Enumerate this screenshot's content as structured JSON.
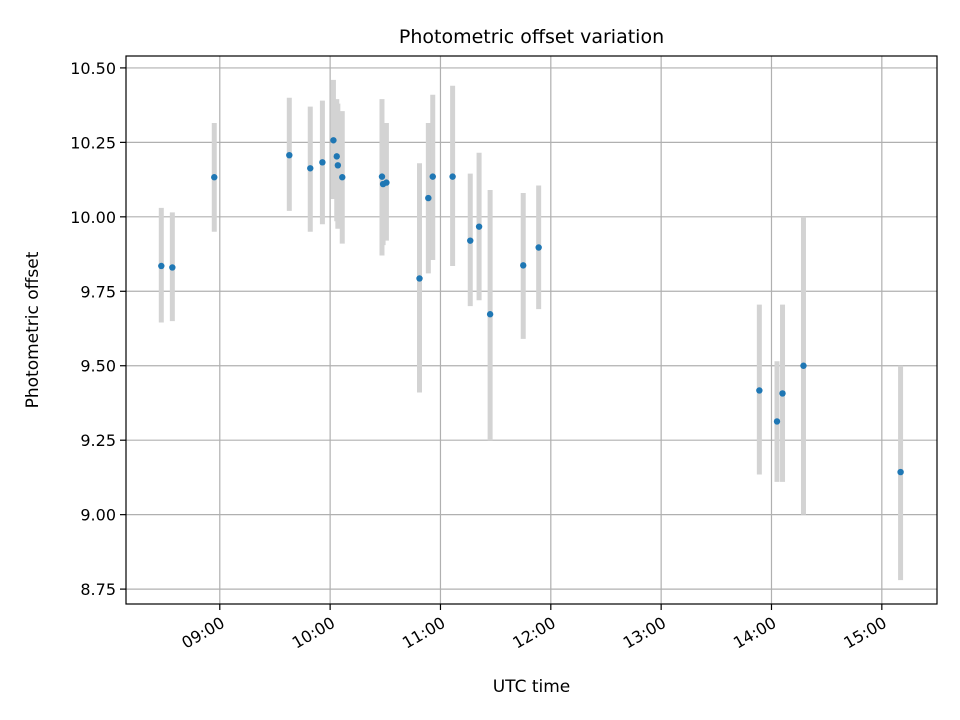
{
  "chart_data": {
    "type": "scatter",
    "title": "Photometric offset variation",
    "xlabel": "UTC time",
    "ylabel": "Photometric offset",
    "x_unit": "hours UTC",
    "xlim": [
      8.15,
      15.5
    ],
    "ylim": [
      8.7,
      10.54
    ],
    "grid": true,
    "x_ticks": [
      {
        "value": 9,
        "label": "09:00"
      },
      {
        "value": 10,
        "label": "10:00"
      },
      {
        "value": 11,
        "label": "11:00"
      },
      {
        "value": 12,
        "label": "12:00"
      },
      {
        "value": 13,
        "label": "13:00"
      },
      {
        "value": 14,
        "label": "14:00"
      },
      {
        "value": 15,
        "label": "15:00"
      }
    ],
    "y_ticks": [
      {
        "value": 8.75,
        "label": "8.75"
      },
      {
        "value": 9.0,
        "label": "9.00"
      },
      {
        "value": 9.25,
        "label": "9.25"
      },
      {
        "value": 9.5,
        "label": "9.50"
      },
      {
        "value": 9.75,
        "label": "9.75"
      },
      {
        "value": 10.0,
        "label": "10.00"
      },
      {
        "value": 10.25,
        "label": "10.25"
      },
      {
        "value": 10.5,
        "label": "10.50"
      }
    ],
    "marker_color": "#1f77b4",
    "errorbar_color": "#d3d3d3",
    "points": [
      {
        "x": 8.47,
        "y": 9.835,
        "lo": 9.645,
        "hi": 10.03
      },
      {
        "x": 8.57,
        "y": 9.83,
        "lo": 9.65,
        "hi": 10.015
      },
      {
        "x": 8.95,
        "y": 10.133,
        "lo": 9.95,
        "hi": 10.315
      },
      {
        "x": 9.63,
        "y": 10.207,
        "lo": 10.02,
        "hi": 10.4
      },
      {
        "x": 9.82,
        "y": 10.163,
        "lo": 9.95,
        "hi": 10.37
      },
      {
        "x": 9.93,
        "y": 10.183,
        "lo": 9.975,
        "hi": 10.39
      },
      {
        "x": 10.03,
        "y": 10.257,
        "lo": 10.06,
        "hi": 10.46
      },
      {
        "x": 10.06,
        "y": 10.203,
        "lo": 9.985,
        "hi": 10.395
      },
      {
        "x": 10.07,
        "y": 10.173,
        "lo": 9.96,
        "hi": 10.38
      },
      {
        "x": 10.11,
        "y": 10.133,
        "lo": 9.91,
        "hi": 10.355
      },
      {
        "x": 10.47,
        "y": 10.135,
        "lo": 9.87,
        "hi": 10.395
      },
      {
        "x": 10.48,
        "y": 10.11,
        "lo": 9.905,
        "hi": 10.31
      },
      {
        "x": 10.51,
        "y": 10.115,
        "lo": 9.92,
        "hi": 10.315
      },
      {
        "x": 10.81,
        "y": 9.793,
        "lo": 9.41,
        "hi": 10.18
      },
      {
        "x": 10.89,
        "y": 10.063,
        "lo": 9.81,
        "hi": 10.315
      },
      {
        "x": 10.93,
        "y": 10.135,
        "lo": 9.855,
        "hi": 10.41
      },
      {
        "x": 11.11,
        "y": 10.135,
        "lo": 9.835,
        "hi": 10.44
      },
      {
        "x": 11.27,
        "y": 9.92,
        "lo": 9.7,
        "hi": 10.145
      },
      {
        "x": 11.35,
        "y": 9.967,
        "lo": 9.72,
        "hi": 10.215
      },
      {
        "x": 11.45,
        "y": 9.673,
        "lo": 9.25,
        "hi": 10.09
      },
      {
        "x": 11.75,
        "y": 9.837,
        "lo": 9.59,
        "hi": 10.08
      },
      {
        "x": 11.89,
        "y": 9.897,
        "lo": 9.69,
        "hi": 10.105
      },
      {
        "x": 13.89,
        "y": 9.417,
        "lo": 9.135,
        "hi": 9.705
      },
      {
        "x": 14.05,
        "y": 9.313,
        "lo": 9.11,
        "hi": 9.515
      },
      {
        "x": 14.1,
        "y": 9.407,
        "lo": 9.11,
        "hi": 9.705
      },
      {
        "x": 14.29,
        "y": 9.5,
        "lo": 9.0,
        "hi": 10.0
      },
      {
        "x": 15.17,
        "y": 9.143,
        "lo": 8.78,
        "hi": 9.5
      }
    ]
  }
}
